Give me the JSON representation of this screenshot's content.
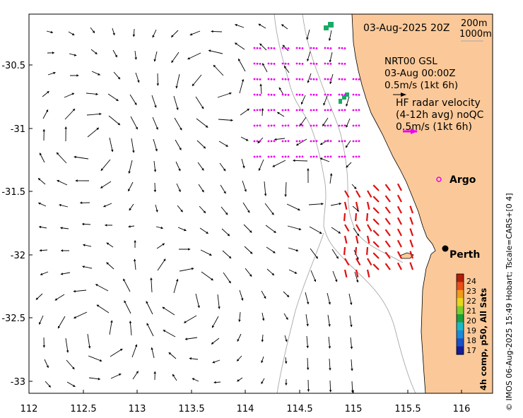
{
  "map": {
    "date_label": "03-Aug-2025 20Z",
    "isobath_labels": [
      "200m",
      "1000m"
    ],
    "nrt_legend": [
      "NRT00 GSL",
      "03-Aug 00:00Z",
      "0.5m/s (1kt 6h)"
    ],
    "hf_legend": [
      "HF radar velocity",
      "(4-12h avg) noQC",
      "0.5m/s (1kt 6h)"
    ],
    "argo_label": "Argo",
    "city_label": "Perth",
    "colorbar_title": "4h comp, p50, All Sats",
    "colorbar_ticks": [
      "24",
      "23",
      "22",
      "21",
      "20",
      "19",
      "18",
      "17"
    ],
    "colorbar_colors": [
      "#b41e0a",
      "#e8501a",
      "#f29a1c",
      "#e8d61c",
      "#7ccf2a",
      "#1ca03c",
      "#1cb8c8",
      "#1a8ad8",
      "#1a50c8",
      "#141e96"
    ],
    "credit": "© IMOS 06-Aug-2025 15:49 Hobart; Tscale=CARS+[0 4]",
    "x_ticks": [
      "112",
      "112.5",
      "113",
      "113.5",
      "114",
      "114.5",
      "115",
      "115.5",
      "116"
    ],
    "y_ticks": [
      "-30.5",
      "-31",
      "-31.5",
      "-32",
      "-32.5",
      "-33"
    ],
    "colors": {
      "land": "#fbc999",
      "nrt_vectors": "#ee00ee",
      "hf_vectors": "#e01010",
      "sst_patch": "#1aaa66",
      "isobath": "#a8a8a8"
    }
  }
}
